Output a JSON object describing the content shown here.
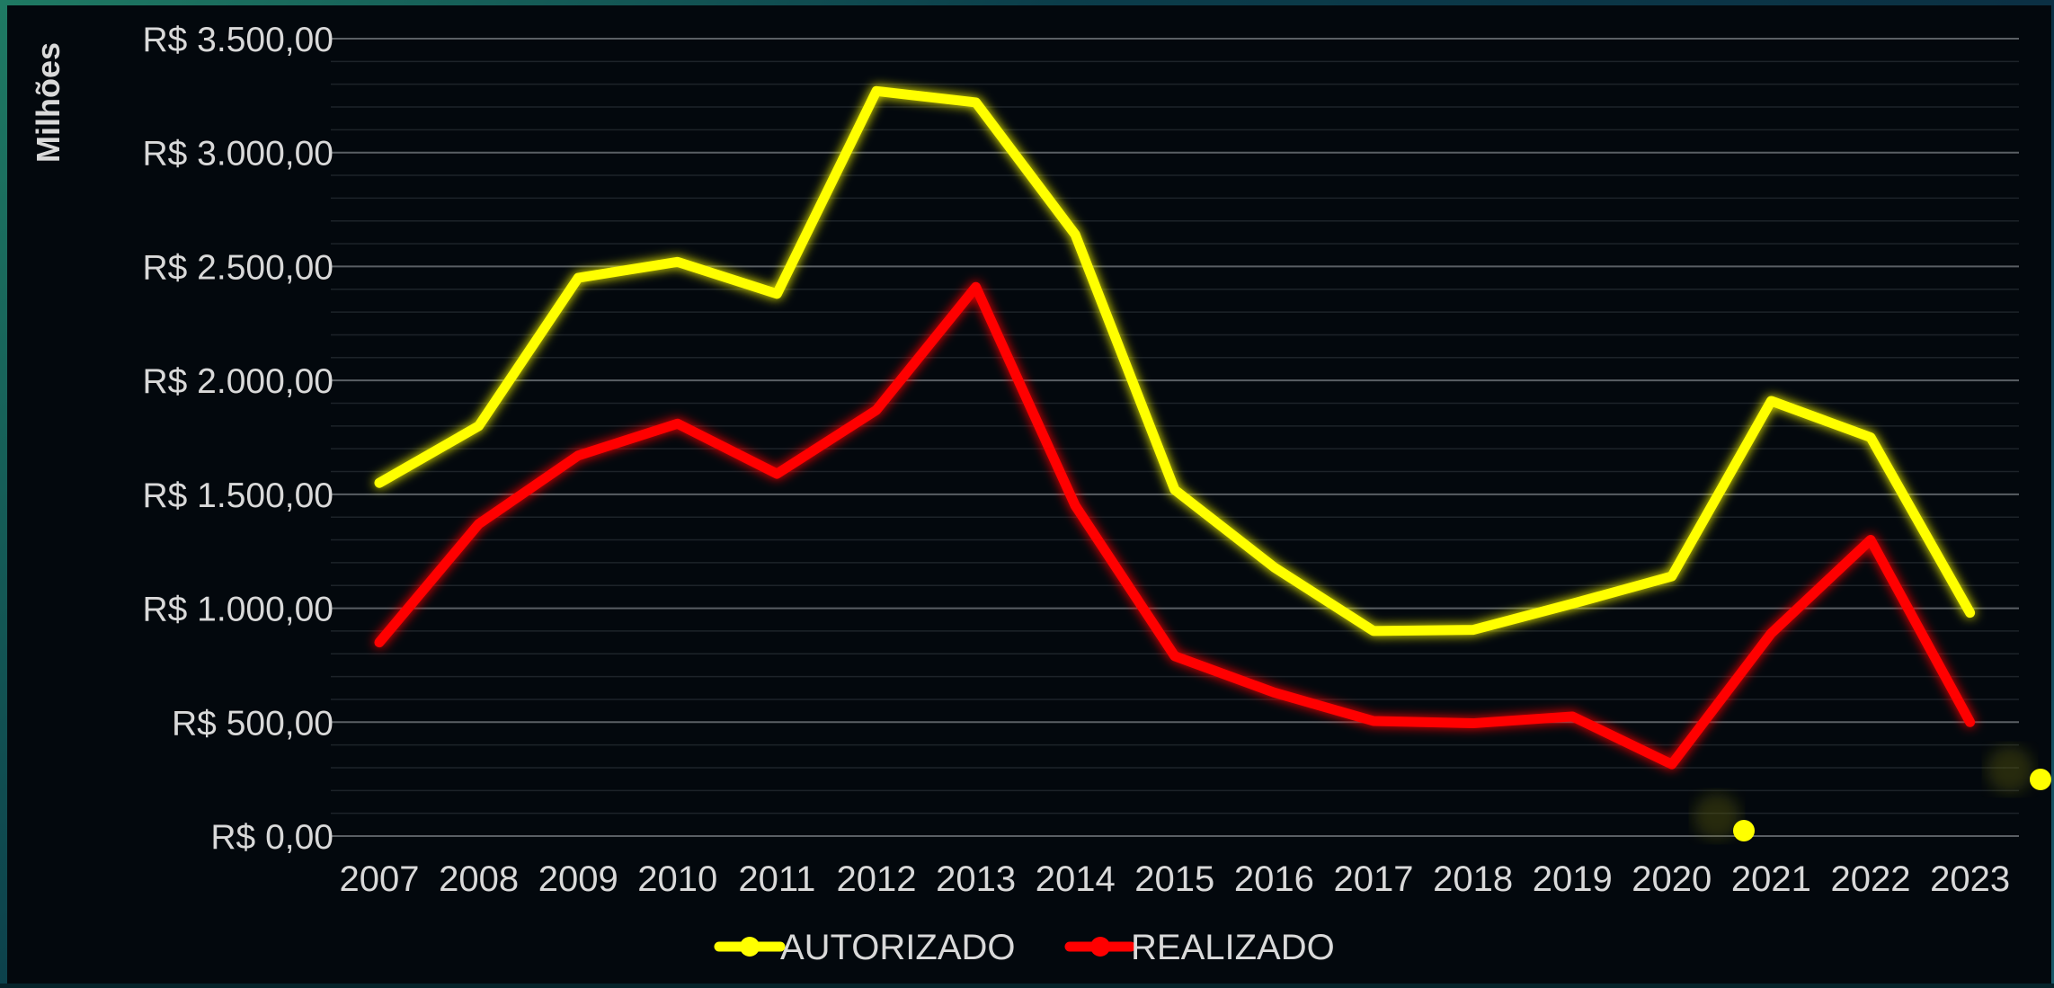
{
  "chart_data": {
    "type": "line",
    "ylabel": "Milhões",
    "ylim": [
      0,
      3500
    ],
    "ytick_values": [
      0,
      500,
      1000,
      1500,
      2000,
      2500,
      3000,
      3500
    ],
    "ytick_labels": [
      "R$ 0,00",
      "R$ 500,00",
      "R$ 1.000,00",
      "R$ 1.500,00",
      "R$ 2.000,00",
      "R$ 2.500,00",
      "R$ 3.000,00",
      "R$ 3.500,00"
    ],
    "categories": [
      "2007",
      "2008",
      "2009",
      "2010",
      "2011",
      "2012",
      "2013",
      "2014",
      "2015",
      "2016",
      "2017",
      "2018",
      "2019",
      "2020",
      "2021",
      "2022",
      "2023"
    ],
    "series": [
      {
        "name": "AUTORIZADO",
        "color": "#ffff00",
        "values": [
          1550,
          1800,
          2450,
          2520,
          2380,
          3270,
          3220,
          2640,
          1520,
          1180,
          900,
          905,
          1020,
          1140,
          1910,
          1750,
          980
        ]
      },
      {
        "name": "REALIZADO",
        "color": "#ff0000",
        "values": [
          850,
          1370,
          1670,
          1810,
          1590,
          1870,
          2410,
          1450,
          790,
          630,
          505,
          495,
          525,
          315,
          890,
          1300,
          500
        ]
      }
    ],
    "grid": true,
    "legend_position": "bottom"
  }
}
